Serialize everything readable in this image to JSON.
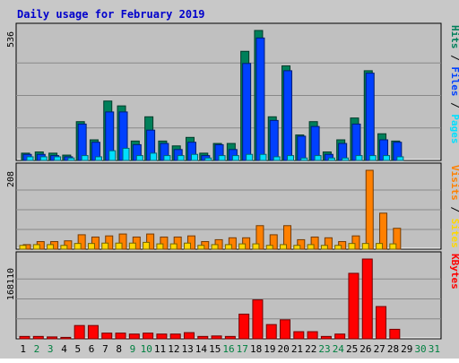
{
  "title": "Daily usage for February 2019",
  "colors": {
    "background": "#c8c8c8",
    "plot_bg": "#c0c0c0",
    "title": "#0000cc",
    "hits": "#00805a",
    "files": "#0040ff",
    "pages": "#00e0ff",
    "visits": "#ff8000",
    "sites": "#ffd700",
    "kbytes": "#ff0000",
    "weekday_label": "#000000",
    "weekend_label": "#008040"
  },
  "chart_data": [
    {
      "type": "bar",
      "ymax_label": "536",
      "legend": [
        {
          "label": "Pages",
          "color": "#00e0ff"
        },
        {
          "label": "Files",
          "color": "#0040ff"
        },
        {
          "label": "Hits",
          "color": "#00805a"
        }
      ],
      "ylim": [
        0,
        536
      ],
      "categories": [
        "1",
        "2",
        "3",
        "4",
        "5",
        "6",
        "7",
        "8",
        "9",
        "10",
        "11",
        "12",
        "13",
        "14",
        "15",
        "16",
        "17",
        "18",
        "19",
        "20",
        "21",
        "22",
        "23",
        "24",
        "25",
        "26",
        "27",
        "28",
        "29",
        "30",
        "31"
      ],
      "series": [
        {
          "name": "Hits",
          "values": [
            30,
            35,
            30,
            22,
            160,
            85,
            245,
            225,
            80,
            180,
            80,
            60,
            95,
            30,
            70,
            70,
            450,
            536,
            180,
            390,
            105,
            160,
            35,
            85,
            175,
            370,
            110,
            80,
            0,
            0,
            0
          ]
        },
        {
          "name": "Files",
          "values": [
            25,
            25,
            20,
            15,
            150,
            75,
            200,
            200,
            65,
            125,
            70,
            45,
            75,
            20,
            65,
            45,
            400,
            505,
            165,
            370,
            100,
            140,
            25,
            70,
            150,
            360,
            85,
            75,
            0,
            0,
            0
          ]
        },
        {
          "name": "Pages",
          "values": [
            15,
            15,
            15,
            10,
            20,
            15,
            40,
            50,
            20,
            30,
            20,
            20,
            25,
            10,
            20,
            20,
            25,
            25,
            15,
            20,
            10,
            20,
            10,
            10,
            20,
            20,
            20,
            15,
            0,
            0,
            0
          ]
        }
      ]
    },
    {
      "type": "bar",
      "ymax_label": "208",
      "legend": [
        {
          "label": "Sites",
          "color": "#ffd700"
        },
        {
          "label": "Visits",
          "color": "#ff8000"
        }
      ],
      "ylim": [
        0,
        208
      ],
      "categories": [
        "1",
        "2",
        "3",
        "4",
        "5",
        "6",
        "7",
        "8",
        "9",
        "10",
        "11",
        "12",
        "13",
        "14",
        "15",
        "16",
        "17",
        "18",
        "19",
        "20",
        "21",
        "22",
        "23",
        "24",
        "25",
        "26",
        "27",
        "28",
        "29",
        "30",
        "31"
      ],
      "series": [
        {
          "name": "Sites",
          "values": [
            10,
            12,
            12,
            10,
            15,
            15,
            16,
            16,
            16,
            18,
            14,
            14,
            16,
            10,
            12,
            12,
            14,
            14,
            10,
            12,
            10,
            12,
            10,
            10,
            15,
            15,
            15,
            14,
            0,
            0,
            0
          ]
        },
        {
          "name": "Visits",
          "values": [
            12,
            20,
            20,
            22,
            38,
            32,
            35,
            40,
            32,
            40,
            32,
            32,
            35,
            20,
            25,
            30,
            30,
            62,
            38,
            62,
            25,
            32,
            30,
            20,
            35,
            208,
            95,
            55,
            0,
            0,
            0
          ]
        }
      ]
    },
    {
      "type": "bar",
      "ymax_label": "168110",
      "legend": [
        {
          "label": "KBytes",
          "color": "#ff0000"
        }
      ],
      "ylim": [
        0,
        168110
      ],
      "categories": [
        "1",
        "2",
        "3",
        "4",
        "5",
        "6",
        "7",
        "8",
        "9",
        "10",
        "11",
        "12",
        "13",
        "14",
        "15",
        "16",
        "17",
        "18",
        "19",
        "20",
        "21",
        "22",
        "23",
        "24",
        "25",
        "26",
        "27",
        "28",
        "29",
        "30",
        "31"
      ],
      "values": [
        5000,
        5000,
        4000,
        3000,
        28000,
        28000,
        12000,
        12000,
        10000,
        12000,
        10000,
        10000,
        13000,
        5000,
        6000,
        5000,
        52000,
        82000,
        30000,
        40000,
        15000,
        15000,
        5000,
        10000,
        138000,
        168110,
        68000,
        20000,
        0,
        0,
        0
      ]
    }
  ],
  "weekend_days": [
    2,
    3,
    9,
    10,
    16,
    17,
    23,
    24,
    30,
    31
  ]
}
